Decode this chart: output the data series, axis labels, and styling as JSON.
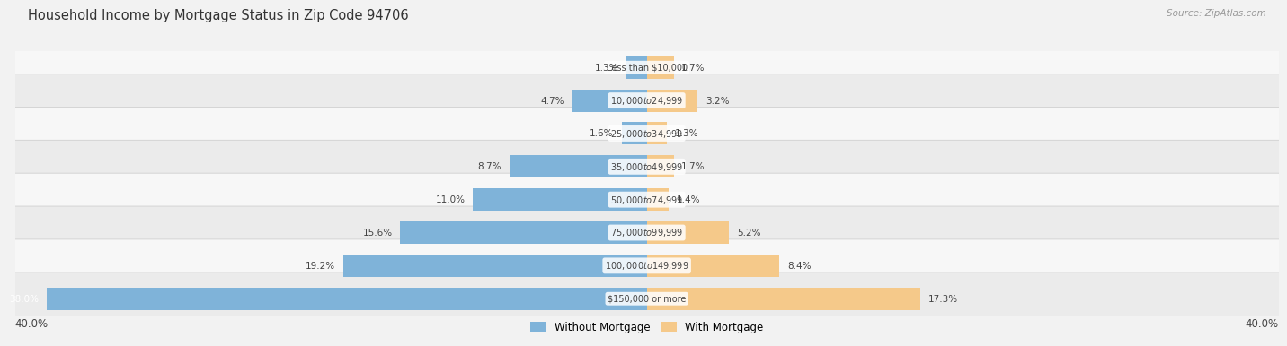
{
  "title": "Household Income by Mortgage Status in Zip Code 94706",
  "source": "Source: ZipAtlas.com",
  "categories": [
    "Less than $10,000",
    "$10,000 to $24,999",
    "$25,000 to $34,999",
    "$35,000 to $49,999",
    "$50,000 to $74,999",
    "$75,000 to $99,999",
    "$100,000 to $149,999",
    "$150,000 or more"
  ],
  "without_mortgage": [
    1.3,
    4.7,
    1.6,
    8.7,
    11.0,
    15.6,
    19.2,
    38.0
  ],
  "with_mortgage": [
    1.7,
    3.2,
    1.3,
    1.7,
    1.4,
    5.2,
    8.4,
    17.3
  ],
  "color_without": "#7fb3d9",
  "color_with": "#f5c98a",
  "max_val": 40.0,
  "bg_color": "#f2f2f2",
  "label_color_dark": "#444444",
  "label_color_white": "#ffffff",
  "title_color": "#333333",
  "source_color": "#999999",
  "row_colors": [
    "#f7f7f7",
    "#ebebeb"
  ],
  "row_border_color": "#d0d0d0"
}
